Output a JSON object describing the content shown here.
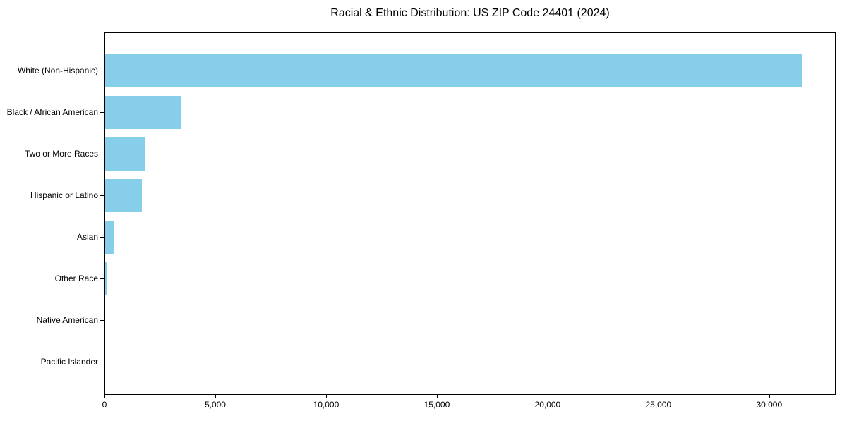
{
  "chart_data": {
    "type": "bar",
    "orientation": "horizontal",
    "title": "Racial & Ethnic Distribution: US ZIP Code 24401 (2024)",
    "categories": [
      "White (Non-Hispanic)",
      "Black / African American",
      "Two or More Races",
      "Hispanic or Latino",
      "Asian",
      "Other Race",
      "Native American",
      "Pacific Islander"
    ],
    "values": [
      31500,
      3400,
      1800,
      1650,
      400,
      100,
      0,
      0
    ],
    "xlabel": "",
    "ylabel": "",
    "xlim": [
      0,
      33000
    ],
    "x_ticks": [
      0,
      5000,
      10000,
      15000,
      20000,
      25000,
      30000
    ],
    "x_tick_labels": [
      "0",
      "5,000",
      "10,000",
      "15,000",
      "20,000",
      "25,000",
      "30,000"
    ],
    "grid": false,
    "legend": null,
    "bar_color": "#87CEEB",
    "axis_color": "#000000",
    "background_color": "#FFFFFF"
  }
}
